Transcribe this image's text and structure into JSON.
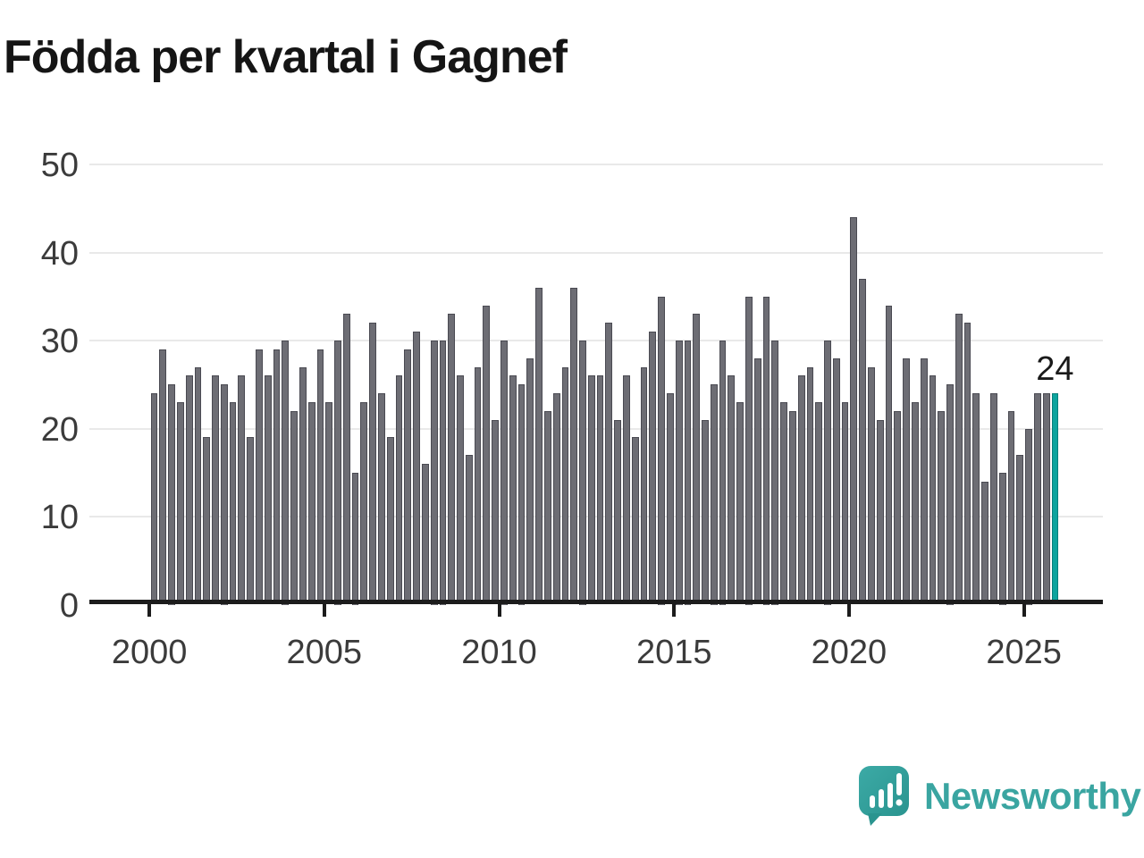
{
  "title": "Födda per kvartal i Gagnef",
  "annotation": {
    "label": "24"
  },
  "branding": {
    "name": "Newsworthy",
    "icon": "newsworthy-speech-bubble-barchart-icon"
  },
  "colors": {
    "bar": "#6d6d74",
    "bar_border": "#4a4a52",
    "highlight": "#0ca49e",
    "highlight_border": "#097f7a",
    "grid": "#e9e9e9",
    "axis": "#1c1c1c",
    "title_text": "#151515",
    "tick_text": "#3b3b3b",
    "brand_teal": "#3aa5a1"
  },
  "chart_data": {
    "type": "bar",
    "title": "Födda per kvartal i Gagnef",
    "xlabel": "",
    "ylabel": "",
    "ylim": [
      0,
      50
    ],
    "grid": "horizontal",
    "legend": "none",
    "y_tick_labels": [
      "0",
      "10",
      "20",
      "30",
      "40",
      "50"
    ],
    "x_tick_labels": [
      "2000",
      "2005",
      "2010",
      "2015",
      "2020",
      "2025"
    ],
    "x_tick_indices": [
      0,
      20,
      40,
      60,
      80,
      100
    ],
    "highlight_last_bar": true,
    "annotation_last_value": "24",
    "categories": [
      "2000-Q1",
      "2000-Q2",
      "2000-Q3",
      "2000-Q4",
      "2001-Q1",
      "2001-Q2",
      "2001-Q3",
      "2001-Q4",
      "2002-Q1",
      "2002-Q2",
      "2002-Q3",
      "2002-Q4",
      "2003-Q1",
      "2003-Q2",
      "2003-Q3",
      "2003-Q4",
      "2004-Q1",
      "2004-Q2",
      "2004-Q3",
      "2004-Q4",
      "2005-Q1",
      "2005-Q2",
      "2005-Q3",
      "2005-Q4",
      "2006-Q1",
      "2006-Q2",
      "2006-Q3",
      "2006-Q4",
      "2007-Q1",
      "2007-Q2",
      "2007-Q3",
      "2007-Q4",
      "2008-Q1",
      "2008-Q2",
      "2008-Q3",
      "2008-Q4",
      "2009-Q1",
      "2009-Q2",
      "2009-Q3",
      "2009-Q4",
      "2010-Q1",
      "2010-Q2",
      "2010-Q3",
      "2010-Q4",
      "2011-Q1",
      "2011-Q2",
      "2011-Q3",
      "2011-Q4",
      "2012-Q1",
      "2012-Q2",
      "2012-Q3",
      "2012-Q4",
      "2013-Q1",
      "2013-Q2",
      "2013-Q3",
      "2013-Q4",
      "2014-Q1",
      "2014-Q2",
      "2014-Q3",
      "2014-Q4",
      "2015-Q1",
      "2015-Q2",
      "2015-Q3",
      "2015-Q4",
      "2016-Q1",
      "2016-Q2",
      "2016-Q3",
      "2016-Q4",
      "2017-Q1",
      "2017-Q2",
      "2017-Q3",
      "2017-Q4",
      "2018-Q1",
      "2018-Q2",
      "2018-Q3",
      "2018-Q4",
      "2019-Q1",
      "2019-Q2",
      "2019-Q3",
      "2019-Q4",
      "2020-Q1",
      "2020-Q2",
      "2020-Q3",
      "2020-Q4",
      "2021-Q1",
      "2021-Q2",
      "2021-Q3",
      "2021-Q4",
      "2022-Q1",
      "2022-Q2",
      "2022-Q3",
      "2022-Q4",
      "2023-Q1",
      "2023-Q2",
      "2023-Q3",
      "2023-Q4",
      "2024-Q1",
      "2024-Q2",
      "2024-Q3",
      "2024-Q4",
      "2025-Q1",
      "2025-Q2",
      "2025-Q3",
      "2025-Q4"
    ],
    "values": [
      24,
      29,
      25,
      23,
      26,
      27,
      19,
      26,
      25,
      23,
      26,
      19,
      29,
      26,
      29,
      30,
      22,
      27,
      23,
      29,
      23,
      30,
      33,
      15,
      23,
      32,
      24,
      19,
      26,
      29,
      31,
      16,
      30,
      30,
      33,
      26,
      17,
      27,
      34,
      21,
      30,
      26,
      25,
      28,
      36,
      22,
      24,
      27,
      36,
      30,
      26,
      26,
      32,
      21,
      26,
      19,
      27,
      31,
      35,
      24,
      30,
      30,
      33,
      21,
      25,
      30,
      26,
      23,
      35,
      28,
      35,
      30,
      23,
      22,
      26,
      27,
      23,
      30,
      28,
      23,
      44,
      37,
      27,
      21,
      34,
      22,
      28,
      23,
      28,
      26,
      22,
      25,
      33,
      32,
      24,
      14,
      24,
      15,
      22,
      17,
      20,
      24,
      24,
      24
    ]
  }
}
